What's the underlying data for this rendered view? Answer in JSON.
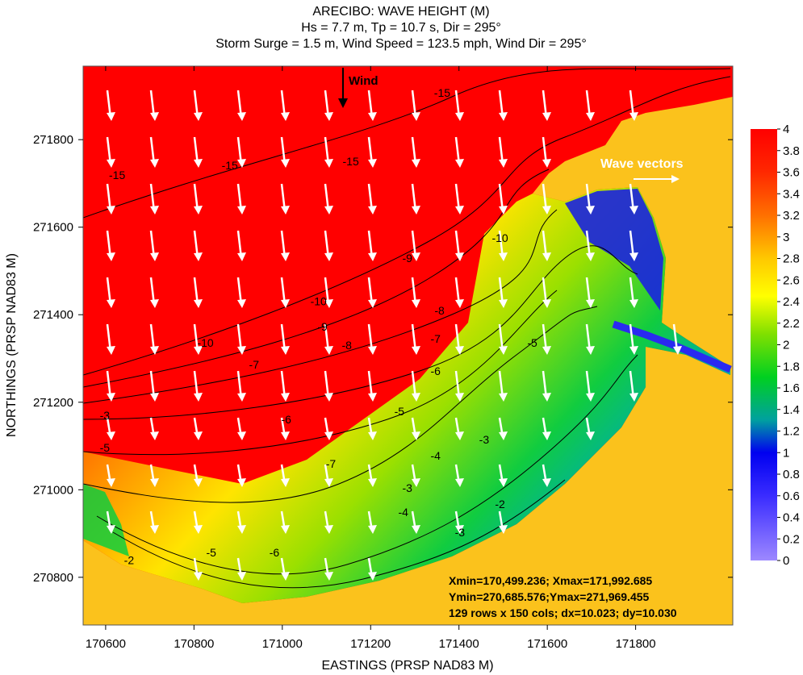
{
  "chart_data": {
    "type": "contour",
    "title": "ARECIBO: WAVE HEIGHT (M)",
    "subtitle": [
      "Hs = 7.7 m, Tp = 10.7 s, Dir = 295°",
      "Storm Surge = 1.5 m, Wind Speed = 123.5 mph, Wind Dir = 295°"
    ],
    "xlabel": "EASTINGS (PRSP NAD83 M)",
    "ylabel": "NORTHINGS (PRSP NAD83 M)",
    "xlim": [
      170549,
      172020
    ],
    "ylim": [
      270691,
      271968
    ],
    "xticks": [
      170600,
      170800,
      171000,
      171200,
      171400,
      171600,
      171800
    ],
    "yticks": [
      270800,
      271000,
      271200,
      271400,
      271600,
      271800
    ],
    "colorbar": {
      "lim": [
        0,
        4
      ],
      "ticks": [
        0,
        0.2,
        0.4,
        0.6,
        0.8,
        1,
        1.2,
        1.4,
        1.6,
        1.8,
        2,
        2.2,
        2.4,
        2.6,
        2.8,
        3,
        3.2,
        3.4,
        3.6,
        3.8,
        4
      ],
      "scale": [
        {
          "value": 0,
          "color": "#9d88ff"
        },
        {
          "value": 0.6,
          "color": "#3a2cff"
        },
        {
          "value": 1,
          "color": "#0000f0"
        },
        {
          "value": 1.3,
          "color": "#00a0a0"
        },
        {
          "value": 1.7,
          "color": "#00d020"
        },
        {
          "value": 2.1,
          "color": "#80e000"
        },
        {
          "value": 2.45,
          "color": "#ffff00"
        },
        {
          "value": 2.8,
          "color": "#ffc800"
        },
        {
          "value": 3.2,
          "color": "#ff7000"
        },
        {
          "value": 3.6,
          "color": "#ff2800"
        },
        {
          "value": 4,
          "color": "#ff0000"
        }
      ]
    },
    "land_color": "#fbc21c",
    "wind_label": "Wind",
    "wave_label": "Wave vectors",
    "grid_info": [
      "Xmin=170,499.236; Xmax=171,992.685",
      "Ymin=270,685.576;Ymax=271,969.455",
      "129 rows x 150 cols; dx=10.023; dy=10.030"
    ],
    "contour_labels": [
      {
        "text": "-15",
        "x": 171362,
        "y": 271898
      },
      {
        "text": "-15",
        "x": 171155,
        "y": 271741
      },
      {
        "text": "-15",
        "x": 170881,
        "y": 271732
      },
      {
        "text": "-15",
        "x": 170626,
        "y": 271710
      },
      {
        "text": "-10",
        "x": 171493,
        "y": 271566
      },
      {
        "text": "-10",
        "x": 171082,
        "y": 271422
      },
      {
        "text": "-10",
        "x": 170826,
        "y": 271327
      },
      {
        "text": "-9",
        "x": 171283,
        "y": 271520
      },
      {
        "text": "-9",
        "x": 171091,
        "y": 271364
      },
      {
        "text": "-8",
        "x": 171356,
        "y": 271400
      },
      {
        "text": "-8",
        "x": 171146,
        "y": 271321
      },
      {
        "text": "-7",
        "x": 171347,
        "y": 271336
      },
      {
        "text": "-7",
        "x": 170936,
        "y": 271277
      },
      {
        "text": "-6",
        "x": 171347,
        "y": 271262
      },
      {
        "text": "-6",
        "x": 171009,
        "y": 271152
      },
      {
        "text": "-5",
        "x": 171265,
        "y": 271170
      },
      {
        "text": "-5",
        "x": 171566,
        "y": 271327
      },
      {
        "text": "-4",
        "x": 171347,
        "y": 271069
      },
      {
        "text": "-3",
        "x": 171457,
        "y": 271106
      },
      {
        "text": "-3",
        "x": 171283,
        "y": 270995
      },
      {
        "text": "-4",
        "x": 171274,
        "y": 270940
      },
      {
        "text": "-2",
        "x": 171493,
        "y": 270958
      },
      {
        "text": "-3",
        "x": 171402,
        "y": 270894
      },
      {
        "text": "-6",
        "x": 170982,
        "y": 270848
      },
      {
        "text": "-5",
        "x": 170839,
        "y": 270848
      },
      {
        "text": "-7",
        "x": 171110,
        "y": 271050
      },
      {
        "text": "-3",
        "x": 170598,
        "y": 271161
      },
      {
        "text": "-5",
        "x": 170598,
        "y": 271087
      },
      {
        "text": "-2",
        "x": 170653,
        "y": 270830
      }
    ]
  }
}
